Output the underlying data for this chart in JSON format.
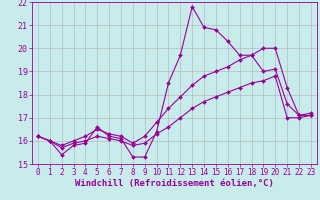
{
  "xlabel": "Windchill (Refroidissement éolien,°C)",
  "ylabel": "",
  "background_color": "#c8ecec",
  "grid_color": "#b0b0b0",
  "line_color": "#990099",
  "xlim": [
    -0.5,
    23.5
  ],
  "ylim": [
    15,
    22
  ],
  "yticks": [
    15,
    16,
    17,
    18,
    19,
    20,
    21,
    22
  ],
  "xticks": [
    0,
    1,
    2,
    3,
    4,
    5,
    6,
    7,
    8,
    9,
    10,
    11,
    12,
    13,
    14,
    15,
    16,
    17,
    18,
    19,
    20,
    21,
    22,
    23
  ],
  "line1_x": [
    0,
    1,
    2,
    3,
    4,
    5,
    6,
    7,
    8,
    9,
    10,
    11,
    12,
    13,
    14,
    15,
    16,
    17,
    18,
    19,
    20,
    21,
    22,
    23
  ],
  "line1_y": [
    16.2,
    16.0,
    15.4,
    15.8,
    15.9,
    16.6,
    16.2,
    16.1,
    15.3,
    15.3,
    16.4,
    18.5,
    19.7,
    21.8,
    20.9,
    20.8,
    20.3,
    19.7,
    19.7,
    20.0,
    20.0,
    18.3,
    17.1,
    17.2
  ],
  "line2_x": [
    0,
    1,
    2,
    3,
    4,
    5,
    6,
    7,
    8,
    9,
    10,
    11,
    12,
    13,
    14,
    15,
    16,
    17,
    18,
    19,
    20,
    21,
    22,
    23
  ],
  "line2_y": [
    16.2,
    16.0,
    15.8,
    16.0,
    16.2,
    16.5,
    16.3,
    16.2,
    15.9,
    16.2,
    16.8,
    17.4,
    17.9,
    18.4,
    18.8,
    19.0,
    19.2,
    19.5,
    19.7,
    19.0,
    19.1,
    17.6,
    17.1,
    17.1
  ],
  "line3_x": [
    0,
    1,
    2,
    3,
    4,
    5,
    6,
    7,
    8,
    9,
    10,
    11,
    12,
    13,
    14,
    15,
    16,
    17,
    18,
    19,
    20,
    21,
    22,
    23
  ],
  "line3_y": [
    16.2,
    16.0,
    15.7,
    15.9,
    16.0,
    16.2,
    16.1,
    16.0,
    15.8,
    15.9,
    16.3,
    16.6,
    17.0,
    17.4,
    17.7,
    17.9,
    18.1,
    18.3,
    18.5,
    18.6,
    18.8,
    17.0,
    17.0,
    17.1
  ],
  "marker": "D",
  "markersize": 2.0,
  "linewidth": 0.8,
  "xlabel_fontsize": 6.5,
  "tick_fontsize": 5.5
}
